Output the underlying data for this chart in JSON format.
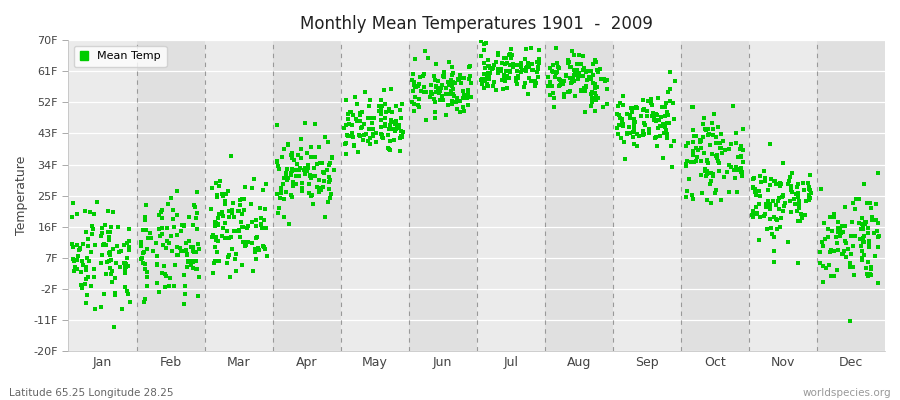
{
  "title": "Monthly Mean Temperatures 1901  -  2009",
  "ylabel": "Temperature",
  "footer_left": "Latitude 65.25 Longitude 28.25",
  "footer_right": "worldspecies.org",
  "legend_label": "Mean Temp",
  "dot_color": "#00CC00",
  "bg_color": "#F2F2F2",
  "band_even": "#EBEBEB",
  "band_odd": "#E0E0E0",
  "yticks": [
    -20,
    -11,
    -2,
    7,
    16,
    25,
    34,
    43,
    52,
    61,
    70
  ],
  "ytick_labels": [
    "-20F",
    "-11F",
    "-2F",
    "7F",
    "16F",
    "25F",
    "34F",
    "43F",
    "52F",
    "61F",
    "70F"
  ],
  "months": [
    "Jan",
    "Feb",
    "Mar",
    "Apr",
    "May",
    "Jun",
    "Jul",
    "Aug",
    "Sep",
    "Oct",
    "Nov",
    "Dec"
  ],
  "month_means_fahrenheit": [
    8.0,
    8.5,
    16.5,
    31.5,
    44.5,
    55.5,
    61.5,
    58.5,
    46.5,
    36.0,
    23.5,
    13.0
  ],
  "month_std_fahrenheit": [
    8.0,
    7.5,
    6.5,
    5.5,
    4.5,
    3.8,
    3.5,
    4.0,
    4.5,
    5.5,
    6.0,
    7.0
  ],
  "n_years": 109,
  "seed": 42
}
